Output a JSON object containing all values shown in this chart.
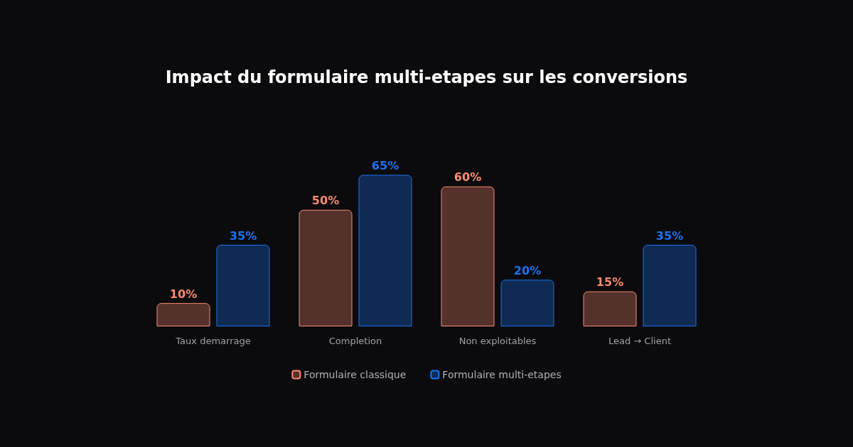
{
  "chart_data": {
    "type": "bar",
    "title": "Impact du formulaire multi-etapes sur les conversions",
    "categories": [
      "Taux demarrage",
      "Completion",
      "Non exploitables",
      "Lead → Client"
    ],
    "series": [
      {
        "name": "Formulaire classique",
        "color": "#ff8a70",
        "values": [
          10,
          50,
          60,
          15
        ],
        "value_labels": [
          "10%",
          "50%",
          "60%",
          "15%"
        ]
      },
      {
        "name": "Formulaire multi-etapes",
        "color": "#1a73f5",
        "values": [
          35,
          65,
          20,
          35
        ],
        "value_labels": [
          "35%",
          "65%",
          "20%",
          "35%"
        ]
      }
    ],
    "legend": "bottom"
  }
}
